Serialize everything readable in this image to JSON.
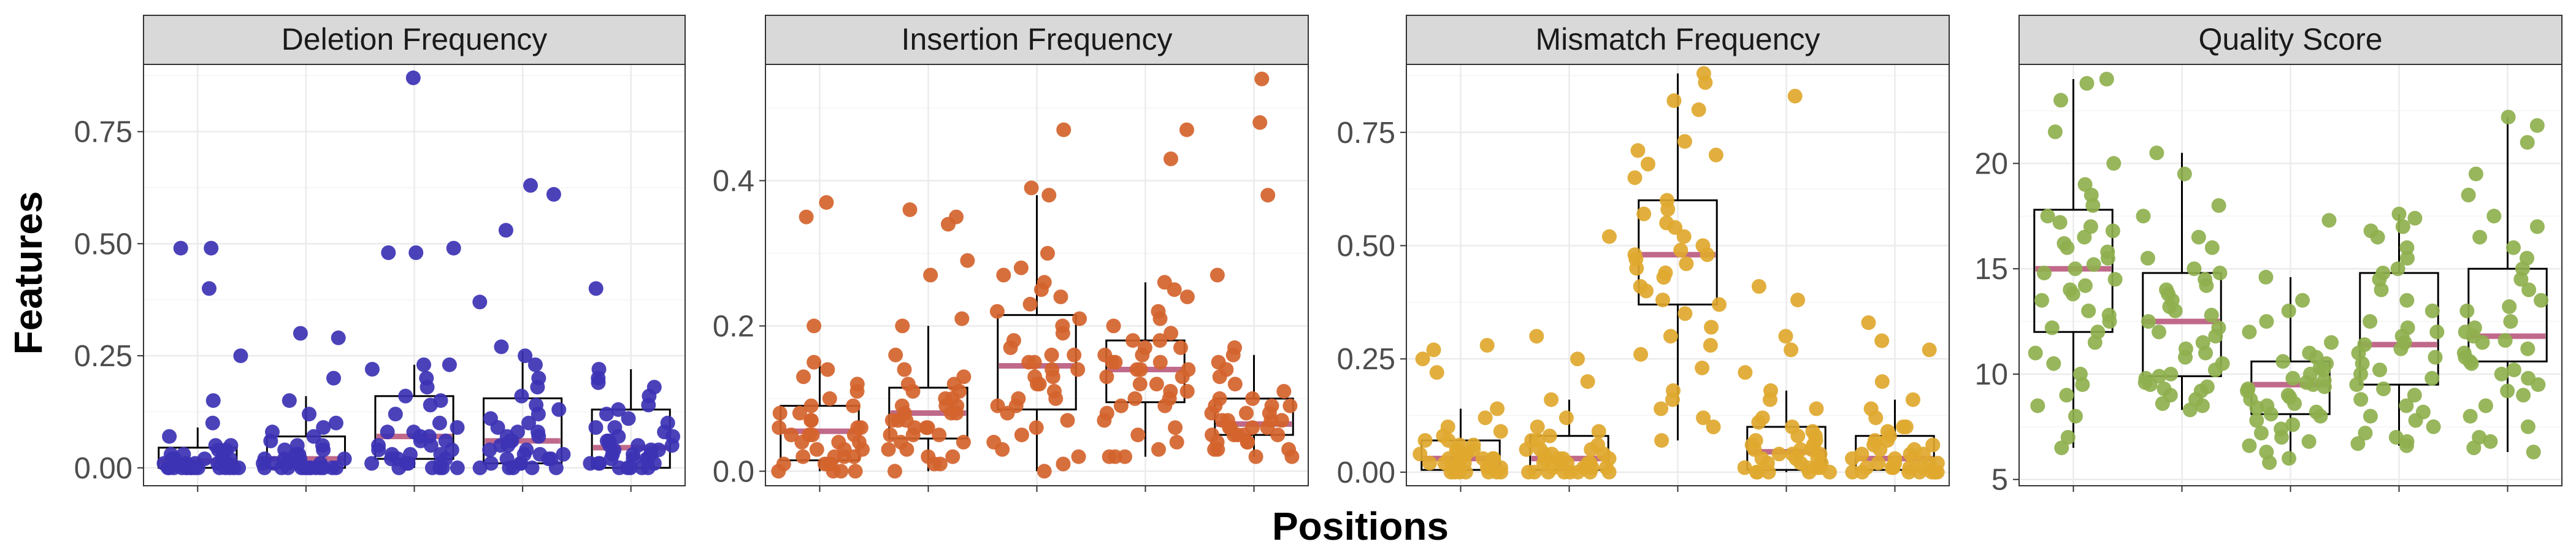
{
  "figure": {
    "xlabel": "Positions",
    "ylabel": "Features"
  },
  "colors": {
    "median_line": "#c0698a",
    "box_outline": "#000000",
    "grid": "#ebebeb",
    "strip_fill": "#d9d9d9"
  },
  "chart_data": [
    {
      "type": "box+jitter",
      "title": "Deletion Frequency",
      "color": "#3c32b4",
      "ylim": [
        -0.04,
        0.9
      ],
      "yticks": [
        0.0,
        0.25,
        0.5,
        0.75
      ],
      "ytick_labels": [
        "0.00",
        "0.25",
        "0.50",
        "0.75"
      ],
      "groups": [
        {
          "q1": 0.0,
          "median": 0.015,
          "q3": 0.045,
          "whisker_low": 0.0,
          "whisker_high": 0.09,
          "points": [
            0.49,
            0.49,
            0.4,
            0.25,
            0.15,
            0.1,
            0.07,
            0.05,
            0.05,
            0.04,
            0.04,
            0.03,
            0.03,
            0.03,
            0.02,
            0.02,
            0.02,
            0.02,
            0.02,
            0.01,
            0.01,
            0.01,
            0.01,
            0.01,
            0.01,
            0.0,
            0.0,
            0.0,
            0.0,
            0.0,
            0.0,
            0.0,
            0.0,
            0.0,
            0.0,
            0.0,
            0.0,
            0.0,
            0.0,
            0.0
          ]
        },
        {
          "q1": 0.0,
          "median": 0.02,
          "q3": 0.07,
          "whisker_low": 0.0,
          "whisker_high": 0.16,
          "points": [
            0.3,
            0.29,
            0.2,
            0.15,
            0.12,
            0.1,
            0.09,
            0.08,
            0.07,
            0.06,
            0.05,
            0.05,
            0.04,
            0.04,
            0.03,
            0.03,
            0.03,
            0.02,
            0.02,
            0.02,
            0.02,
            0.01,
            0.01,
            0.01,
            0.01,
            0.01,
            0.01,
            0.0,
            0.0,
            0.0,
            0.0,
            0.0,
            0.0,
            0.0,
            0.0,
            0.0,
            0.0,
            0.0,
            0.0,
            0.0
          ]
        },
        {
          "q1": 0.02,
          "median": 0.07,
          "q3": 0.16,
          "whisker_low": 0.0,
          "whisker_high": 0.23,
          "points": [
            0.87,
            0.49,
            0.48,
            0.48,
            0.23,
            0.23,
            0.22,
            0.2,
            0.18,
            0.16,
            0.15,
            0.14,
            0.12,
            0.1,
            0.09,
            0.08,
            0.08,
            0.07,
            0.07,
            0.06,
            0.06,
            0.05,
            0.05,
            0.04,
            0.04,
            0.03,
            0.03,
            0.03,
            0.02,
            0.02,
            0.02,
            0.01,
            0.01,
            0.01,
            0.01,
            0.0,
            0.0,
            0.0,
            0.0,
            0.0
          ]
        },
        {
          "q1": 0.01,
          "median": 0.06,
          "q3": 0.155,
          "whisker_low": 0.0,
          "whisker_high": 0.26,
          "points": [
            0.63,
            0.61,
            0.53,
            0.37,
            0.27,
            0.25,
            0.23,
            0.2,
            0.18,
            0.16,
            0.14,
            0.13,
            0.12,
            0.11,
            0.1,
            0.09,
            0.08,
            0.08,
            0.07,
            0.07,
            0.06,
            0.06,
            0.05,
            0.05,
            0.04,
            0.04,
            0.03,
            0.03,
            0.03,
            0.02,
            0.02,
            0.02,
            0.01,
            0.01,
            0.01,
            0.0,
            0.0,
            0.0,
            0.0,
            0.0
          ]
        },
        {
          "q1": 0.0,
          "median": 0.045,
          "q3": 0.13,
          "whisker_low": 0.0,
          "whisker_high": 0.22,
          "points": [
            0.4,
            0.22,
            0.2,
            0.19,
            0.18,
            0.16,
            0.14,
            0.13,
            0.12,
            0.11,
            0.1,
            0.09,
            0.09,
            0.08,
            0.07,
            0.07,
            0.06,
            0.06,
            0.05,
            0.05,
            0.05,
            0.04,
            0.04,
            0.04,
            0.03,
            0.03,
            0.03,
            0.02,
            0.02,
            0.02,
            0.02,
            0.01,
            0.01,
            0.01,
            0.01,
            0.0,
            0.0,
            0.0,
            0.0,
            0.0
          ]
        }
      ]
    },
    {
      "type": "box+jitter",
      "title": "Insertion Frequency",
      "color": "#d4632c",
      "ylim": [
        -0.02,
        0.56
      ],
      "yticks": [
        0.0,
        0.2,
        0.4
      ],
      "ytick_labels": [
        "0.0",
        "0.2",
        "0.4"
      ],
      "groups": [
        {
          "q1": 0.015,
          "median": 0.055,
          "q3": 0.09,
          "whisker_low": 0.0,
          "whisker_high": 0.15,
          "points": [
            0.37,
            0.35,
            0.2,
            0.15,
            0.14,
            0.13,
            0.12,
            0.11,
            0.1,
            0.09,
            0.09,
            0.08,
            0.08,
            0.07,
            0.07,
            0.06,
            0.06,
            0.06,
            0.05,
            0.05,
            0.05,
            0.05,
            0.04,
            0.04,
            0.04,
            0.03,
            0.03,
            0.03,
            0.02,
            0.02,
            0.02,
            0.02,
            0.01,
            0.01,
            0.01,
            0.01,
            0.0,
            0.0,
            0.0,
            0.0
          ]
        },
        {
          "q1": 0.045,
          "median": 0.08,
          "q3": 0.115,
          "whisker_low": 0.0,
          "whisker_high": 0.2,
          "points": [
            0.36,
            0.35,
            0.34,
            0.29,
            0.27,
            0.21,
            0.2,
            0.16,
            0.14,
            0.13,
            0.12,
            0.12,
            0.11,
            0.11,
            0.1,
            0.1,
            0.09,
            0.09,
            0.09,
            0.08,
            0.08,
            0.08,
            0.07,
            0.07,
            0.07,
            0.06,
            0.06,
            0.06,
            0.05,
            0.05,
            0.05,
            0.04,
            0.04,
            0.03,
            0.03,
            0.02,
            0.02,
            0.01,
            0.01,
            0.0
          ]
        },
        {
          "q1": 0.085,
          "median": 0.145,
          "q3": 0.215,
          "whisker_low": 0.0,
          "whisker_high": 0.38,
          "points": [
            0.47,
            0.39,
            0.38,
            0.3,
            0.28,
            0.27,
            0.26,
            0.25,
            0.24,
            0.23,
            0.22,
            0.21,
            0.2,
            0.19,
            0.18,
            0.17,
            0.16,
            0.16,
            0.15,
            0.15,
            0.14,
            0.14,
            0.13,
            0.13,
            0.12,
            0.12,
            0.11,
            0.1,
            0.1,
            0.09,
            0.09,
            0.08,
            0.07,
            0.06,
            0.05,
            0.04,
            0.03,
            0.02,
            0.01,
            0.0
          ]
        },
        {
          "q1": 0.095,
          "median": 0.14,
          "q3": 0.18,
          "whisker_low": 0.02,
          "whisker_high": 0.26,
          "points": [
            0.47,
            0.43,
            0.26,
            0.25,
            0.24,
            0.22,
            0.21,
            0.2,
            0.19,
            0.18,
            0.18,
            0.17,
            0.17,
            0.16,
            0.16,
            0.15,
            0.15,
            0.15,
            0.14,
            0.14,
            0.14,
            0.13,
            0.13,
            0.12,
            0.12,
            0.11,
            0.11,
            0.1,
            0.1,
            0.09,
            0.09,
            0.08,
            0.07,
            0.06,
            0.05,
            0.04,
            0.03,
            0.02,
            0.02,
            0.02
          ]
        },
        {
          "q1": 0.05,
          "median": 0.065,
          "q3": 0.1,
          "whisker_low": 0.02,
          "whisker_high": 0.16,
          "points": [
            0.54,
            0.48,
            0.38,
            0.27,
            0.17,
            0.16,
            0.15,
            0.14,
            0.13,
            0.12,
            0.11,
            0.1,
            0.1,
            0.09,
            0.09,
            0.09,
            0.08,
            0.08,
            0.08,
            0.07,
            0.07,
            0.07,
            0.07,
            0.06,
            0.06,
            0.06,
            0.06,
            0.05,
            0.05,
            0.05,
            0.05,
            0.05,
            0.04,
            0.04,
            0.04,
            0.03,
            0.03,
            0.03,
            0.02,
            0.02
          ]
        }
      ]
    },
    {
      "type": "box+jitter",
      "title": "Mismatch Frequency",
      "color": "#e0a82e",
      "ylim": [
        -0.03,
        0.9
      ],
      "yticks": [
        0.0,
        0.25,
        0.5,
        0.75
      ],
      "ytick_labels": [
        "0.00",
        "0.25",
        "0.50",
        "0.75"
      ],
      "groups": [
        {
          "q1": 0.005,
          "median": 0.03,
          "q3": 0.07,
          "whisker_low": 0.0,
          "whisker_high": 0.14,
          "points": [
            0.28,
            0.27,
            0.25,
            0.22,
            0.14,
            0.12,
            0.1,
            0.09,
            0.08,
            0.07,
            0.07,
            0.06,
            0.06,
            0.05,
            0.05,
            0.05,
            0.04,
            0.04,
            0.04,
            0.03,
            0.03,
            0.03,
            0.03,
            0.02,
            0.02,
            0.02,
            0.02,
            0.02,
            0.01,
            0.01,
            0.01,
            0.01,
            0.01,
            0.0,
            0.0,
            0.0,
            0.0,
            0.0,
            0.0,
            0.0
          ]
        },
        {
          "q1": 0.005,
          "median": 0.03,
          "q3": 0.08,
          "whisker_low": 0.0,
          "whisker_high": 0.16,
          "points": [
            0.52,
            0.3,
            0.25,
            0.2,
            0.16,
            0.12,
            0.1,
            0.09,
            0.08,
            0.07,
            0.07,
            0.06,
            0.05,
            0.05,
            0.05,
            0.04,
            0.04,
            0.04,
            0.03,
            0.03,
            0.03,
            0.03,
            0.02,
            0.02,
            0.02,
            0.02,
            0.02,
            0.01,
            0.01,
            0.01,
            0.01,
            0.01,
            0.0,
            0.0,
            0.0,
            0.0,
            0.0,
            0.0,
            0.0,
            0.0
          ]
        },
        {
          "q1": 0.37,
          "median": 0.48,
          "q3": 0.6,
          "whisker_low": 0.07,
          "whisker_high": 0.88,
          "points": [
            0.88,
            0.86,
            0.82,
            0.8,
            0.73,
            0.71,
            0.7,
            0.68,
            0.65,
            0.6,
            0.58,
            0.57,
            0.55,
            0.54,
            0.52,
            0.5,
            0.49,
            0.48,
            0.48,
            0.47,
            0.46,
            0.45,
            0.44,
            0.43,
            0.41,
            0.4,
            0.38,
            0.37,
            0.35,
            0.32,
            0.3,
            0.28,
            0.26,
            0.23,
            0.18,
            0.16,
            0.14,
            0.12,
            0.1,
            0.07
          ]
        },
        {
          "q1": 0.005,
          "median": 0.045,
          "q3": 0.1,
          "whisker_low": 0.0,
          "whisker_high": 0.18,
          "points": [
            0.83,
            0.41,
            0.38,
            0.3,
            0.27,
            0.22,
            0.18,
            0.16,
            0.14,
            0.12,
            0.11,
            0.1,
            0.09,
            0.08,
            0.08,
            0.07,
            0.07,
            0.06,
            0.06,
            0.05,
            0.05,
            0.05,
            0.04,
            0.04,
            0.04,
            0.03,
            0.03,
            0.03,
            0.02,
            0.02,
            0.02,
            0.01,
            0.01,
            0.01,
            0.01,
            0.0,
            0.0,
            0.0,
            0.0,
            0.0
          ]
        },
        {
          "q1": 0.005,
          "median": 0.03,
          "q3": 0.08,
          "whisker_low": 0.0,
          "whisker_high": 0.16,
          "points": [
            0.33,
            0.29,
            0.27,
            0.2,
            0.16,
            0.14,
            0.12,
            0.1,
            0.1,
            0.09,
            0.08,
            0.07,
            0.07,
            0.06,
            0.06,
            0.05,
            0.05,
            0.04,
            0.04,
            0.04,
            0.03,
            0.03,
            0.03,
            0.02,
            0.02,
            0.02,
            0.02,
            0.01,
            0.01,
            0.01,
            0.01,
            0.01,
            0.0,
            0.0,
            0.0,
            0.0,
            0.0,
            0.0,
            0.0,
            0.0
          ]
        }
      ]
    },
    {
      "type": "box+jitter",
      "title": "Quality Score",
      "color": "#8fb04e",
      "ylim": [
        4.7,
        24.7
      ],
      "yticks": [
        5,
        10,
        15,
        20
      ],
      "ytick_labels": [
        "5",
        "10",
        "15",
        "20"
      ],
      "groups": [
        {
          "q1": 12.0,
          "median": 15.0,
          "q3": 17.8,
          "whisker_low": 6.5,
          "whisker_high": 24.0,
          "points": [
            24.0,
            23.8,
            23.0,
            21.5,
            20.0,
            19.0,
            18.5,
            18.0,
            17.5,
            17.2,
            17.0,
            16.8,
            16.5,
            16.2,
            16.0,
            15.8,
            15.5,
            15.2,
            15.0,
            14.8,
            14.5,
            14.2,
            14.0,
            13.8,
            13.5,
            13.0,
            12.8,
            12.5,
            12.2,
            12.0,
            11.5,
            11.0,
            10.5,
            10.0,
            9.5,
            9.0,
            8.5,
            8.0,
            7.0,
            6.5
          ]
        },
        {
          "q1": 9.9,
          "median": 12.5,
          "q3": 14.8,
          "whisker_low": 8.3,
          "whisker_high": 20.5,
          "points": [
            20.5,
            19.5,
            18.0,
            17.5,
            16.5,
            16.0,
            15.5,
            15.0,
            14.8,
            14.5,
            14.2,
            14.0,
            13.8,
            13.5,
            13.2,
            13.0,
            12.8,
            12.5,
            12.2,
            12.0,
            11.8,
            11.5,
            11.2,
            11.0,
            10.8,
            10.5,
            10.2,
            10.0,
            9.9,
            9.8,
            9.6,
            9.5,
            9.4,
            9.3,
            9.2,
            9.0,
            8.8,
            8.6,
            8.5,
            8.3
          ]
        },
        {
          "q1": 8.1,
          "median": 9.5,
          "q3": 10.6,
          "whisker_low": 5.8,
          "whisker_high": 14.6,
          "points": [
            17.3,
            14.6,
            13.5,
            13.0,
            12.5,
            12.0,
            11.5,
            11.0,
            10.8,
            10.6,
            10.5,
            10.3,
            10.2,
            10.0,
            9.8,
            9.7,
            9.6,
            9.5,
            9.4,
            9.3,
            9.2,
            9.0,
            8.9,
            8.8,
            8.6,
            8.5,
            8.4,
            8.2,
            8.1,
            8.0,
            7.8,
            7.6,
            7.4,
            7.2,
            7.0,
            6.8,
            6.6,
            6.3,
            6.0,
            5.8
          ]
        },
        {
          "q1": 9.5,
          "median": 11.4,
          "q3": 14.8,
          "whisker_low": 6.6,
          "whisker_high": 17.6,
          "points": [
            17.6,
            17.4,
            17.0,
            16.8,
            16.5,
            16.0,
            15.5,
            15.0,
            14.8,
            14.5,
            14.0,
            13.5,
            13.0,
            12.5,
            12.2,
            12.0,
            11.8,
            11.5,
            11.4,
            11.2,
            11.0,
            10.8,
            10.5,
            10.2,
            10.0,
            9.8,
            9.5,
            9.3,
            9.0,
            8.8,
            8.5,
            8.2,
            8.0,
            7.8,
            7.5,
            7.2,
            7.0,
            6.8,
            6.7,
            6.6
          ]
        },
        {
          "q1": 10.6,
          "median": 11.8,
          "q3": 15.0,
          "whisker_low": 6.3,
          "whisker_high": 22.2,
          "points": [
            22.2,
            21.8,
            21.0,
            19.5,
            18.5,
            17.5,
            17.0,
            16.5,
            16.0,
            15.5,
            15.0,
            14.5,
            14.0,
            13.5,
            13.2,
            13.0,
            12.5,
            12.2,
            12.0,
            11.8,
            11.6,
            11.5,
            11.2,
            11.0,
            10.8,
            10.6,
            10.5,
            10.2,
            10.0,
            9.8,
            9.5,
            9.2,
            9.0,
            8.5,
            8.0,
            7.5,
            7.0,
            6.8,
            6.5,
            6.3
          ]
        }
      ]
    }
  ]
}
